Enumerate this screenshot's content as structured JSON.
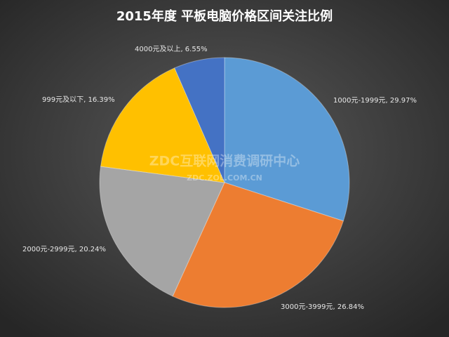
{
  "chart_data": {
    "type": "pie",
    "title": "2015年度 平板电脑价格区间关注比例",
    "categories": [
      "1000元-1999元",
      "3000元-3999元",
      "2000元-2999元",
      "999元及以下",
      "4000元及以上"
    ],
    "values": [
      29.97,
      26.84,
      20.24,
      16.39,
      6.55
    ],
    "value_labels": [
      ", 29.97%",
      ", 26.84%",
      ", 20.24%",
      ", 16.39%",
      ", 6.55%"
    ],
    "colors": [
      "#5b9bd5",
      "#ed7d31",
      "#a5a5a5",
      "#ffc000",
      "#4472c4"
    ],
    "watermark": "ZDC互联网消费调研中心",
    "watermark_url": "ZDC.ZOL.COM.CN"
  }
}
